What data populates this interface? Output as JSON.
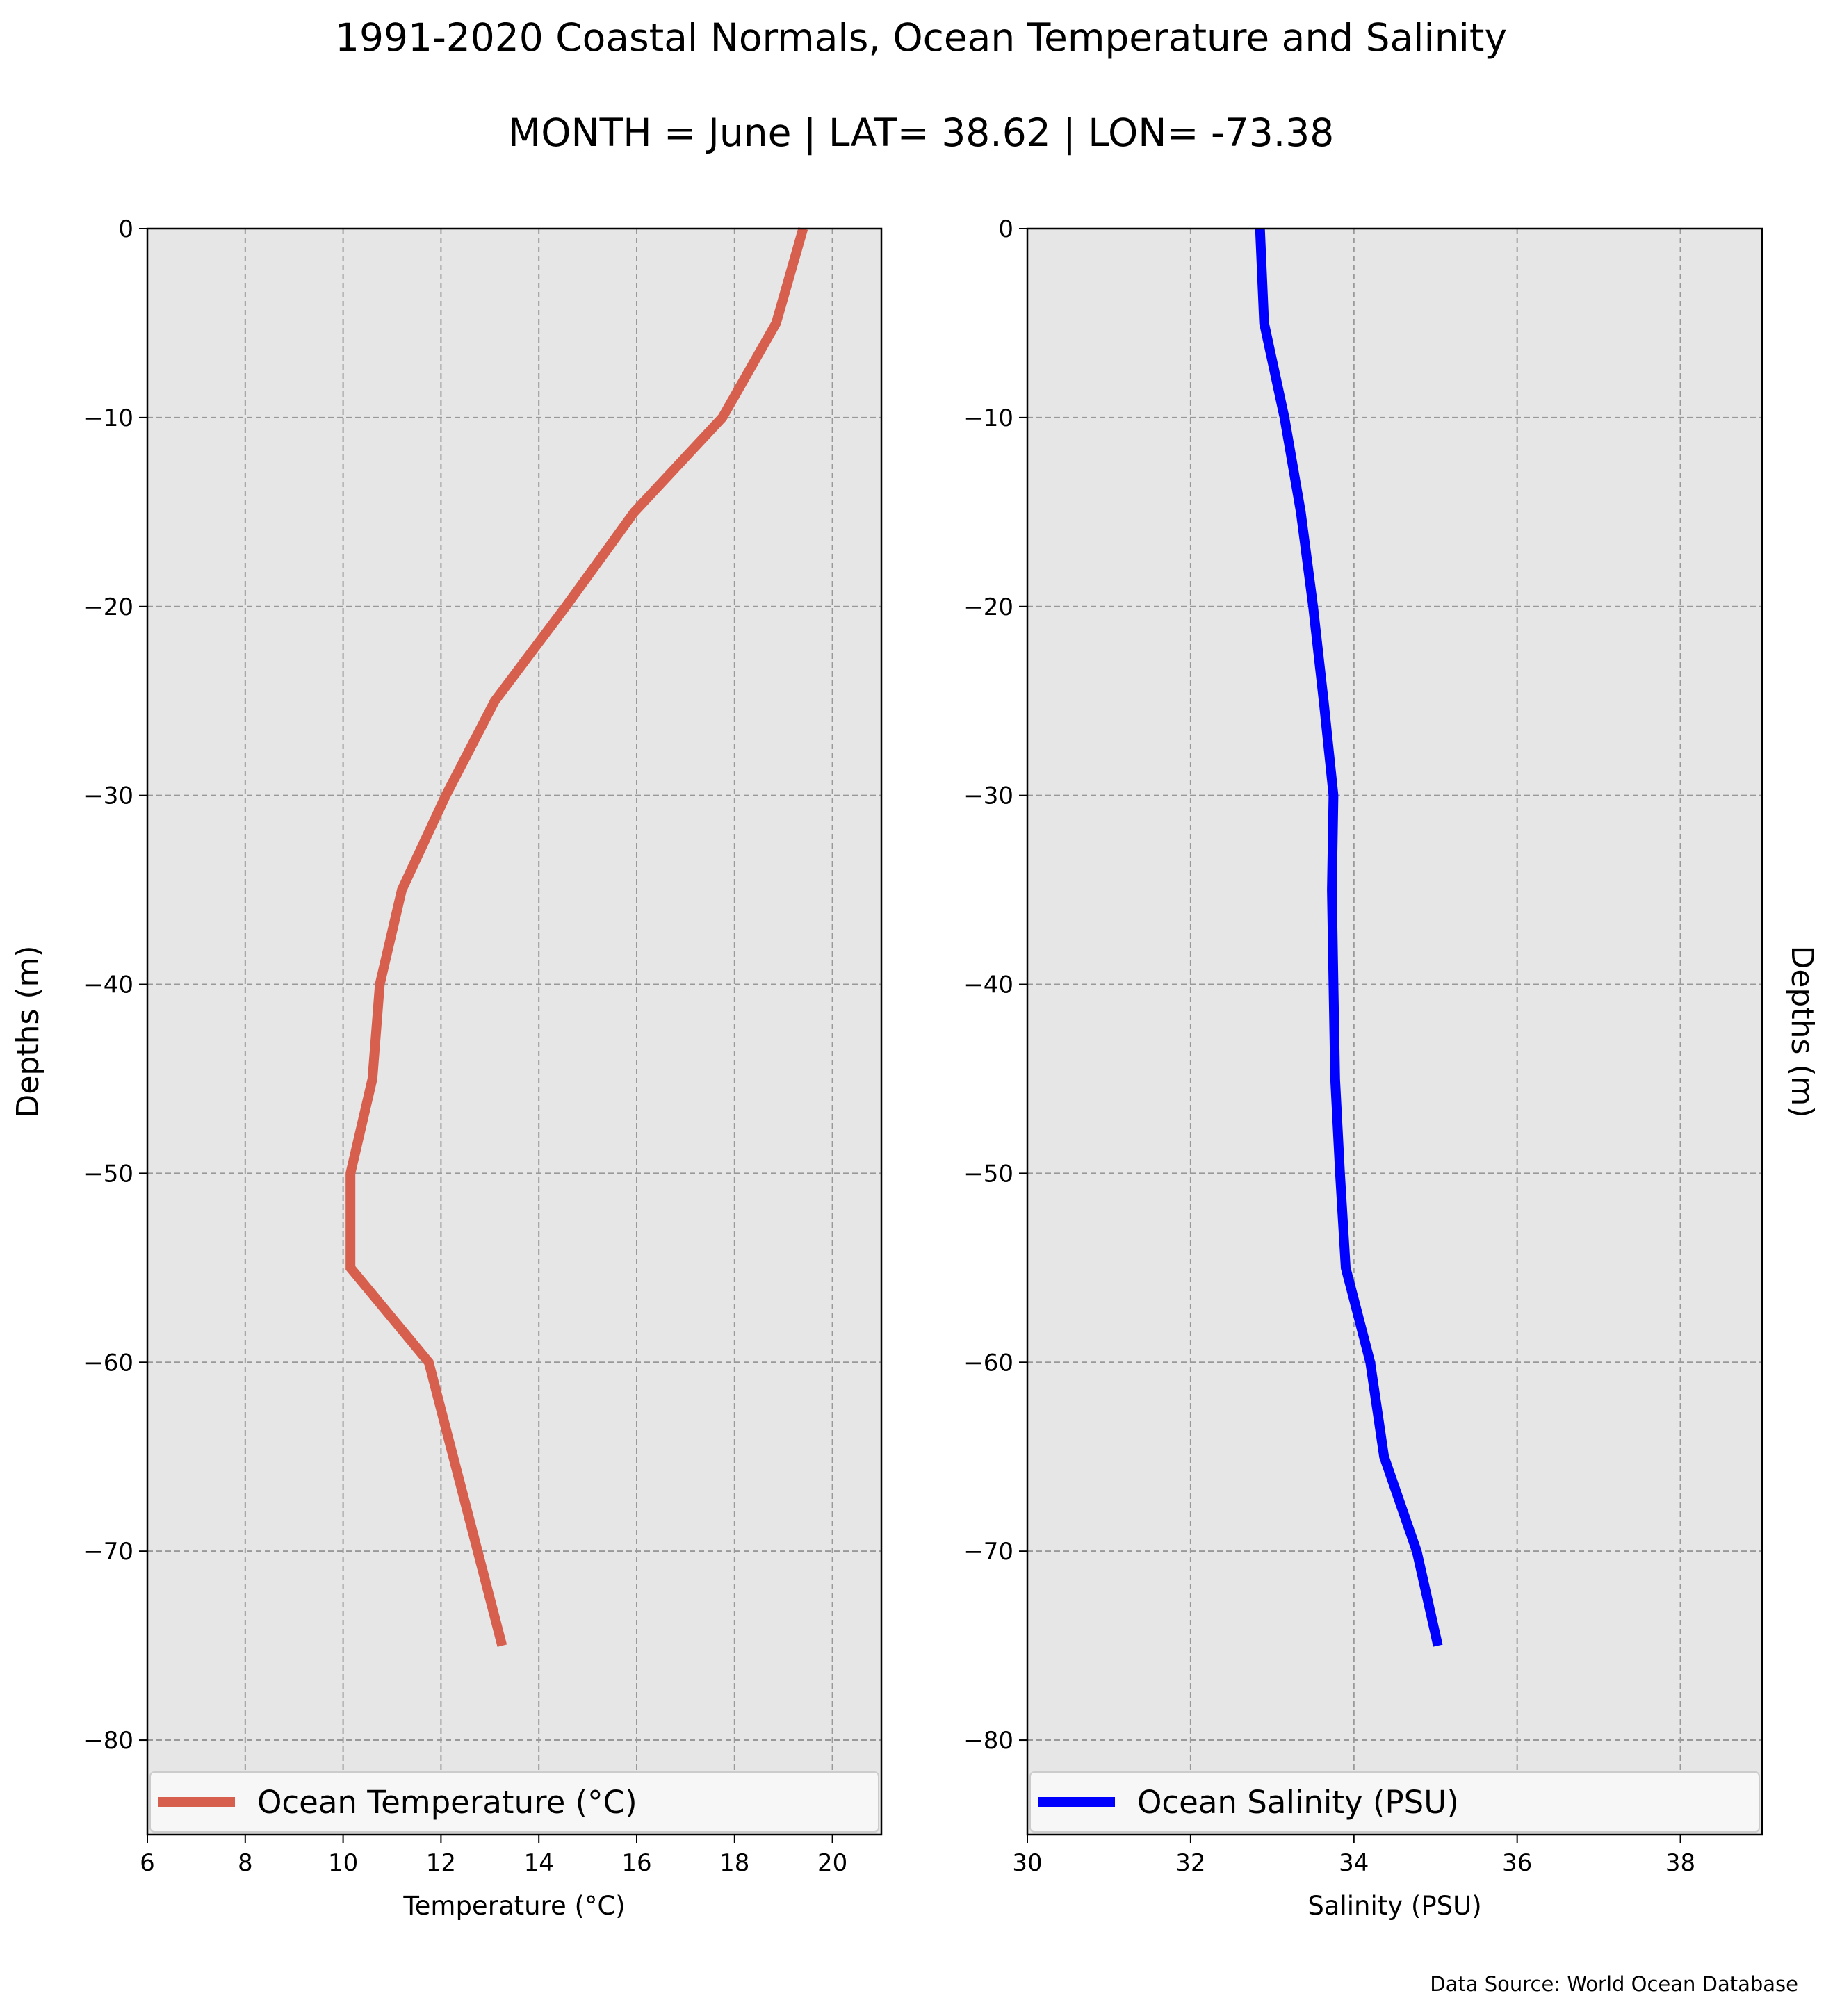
{
  "title": "1991-2020 Coastal Normals, Ocean Temperature and Salinity",
  "subtitle": "MONTH = June | LAT= 38.62 | LON= -73.38",
  "source": "Data Source: World Ocean Database",
  "colors": {
    "plot_bg": "#e6e6e6",
    "grid": "#999999",
    "temperature": "#d65f4e",
    "salinity": "#0000ff"
  },
  "chart_data": [
    {
      "type": "line",
      "xlabel": "Temperature (°C)",
      "ylabel": "Depths (m)",
      "xlim": [
        6,
        21
      ],
      "ylim": [
        -85,
        0
      ],
      "xticks": [
        6,
        8,
        10,
        12,
        14,
        16,
        18,
        20
      ],
      "yticks": [
        0,
        -10,
        -20,
        -30,
        -40,
        -50,
        -60,
        -70,
        -80
      ],
      "grid": true,
      "legend_position": "bottom",
      "series": [
        {
          "name": "Ocean Temperature (°C)",
          "color": "#d65f4e",
          "x": [
            19.4,
            18.85,
            17.75,
            15.95,
            14.55,
            13.1,
            12.1,
            11.2,
            10.75,
            10.6,
            10.15,
            10.15,
            11.75,
            12.25,
            12.75,
            13.25
          ],
          "y": [
            0,
            -5,
            -10,
            -15,
            -20,
            -25,
            -30,
            -35,
            -40,
            -45,
            -50,
            -55,
            -60,
            -65,
            -70,
            -75
          ]
        }
      ]
    },
    {
      "type": "line",
      "xlabel": "Salinity (PSU)",
      "ylabel": "Depths (m)",
      "xlim": [
        30,
        39
      ],
      "ylim": [
        -85,
        0
      ],
      "xticks": [
        30,
        32,
        34,
        36,
        38
      ],
      "yticks": [
        0,
        -10,
        -20,
        -30,
        -40,
        -50,
        -60,
        -70,
        -80
      ],
      "grid": true,
      "legend_position": "bottom",
      "series": [
        {
          "name": "Ocean Salinity (PSU)",
          "color": "#0000ff",
          "x": [
            32.85,
            32.9,
            33.15,
            33.35,
            33.5,
            33.63,
            33.75,
            33.73,
            33.75,
            33.77,
            33.83,
            33.9,
            34.2,
            34.37,
            34.77,
            35.03
          ],
          "y": [
            0,
            -5,
            -10,
            -15,
            -20,
            -25,
            -30,
            -35,
            -40,
            -45,
            -50,
            -55,
            -60,
            -65,
            -70,
            -75
          ]
        }
      ]
    }
  ]
}
